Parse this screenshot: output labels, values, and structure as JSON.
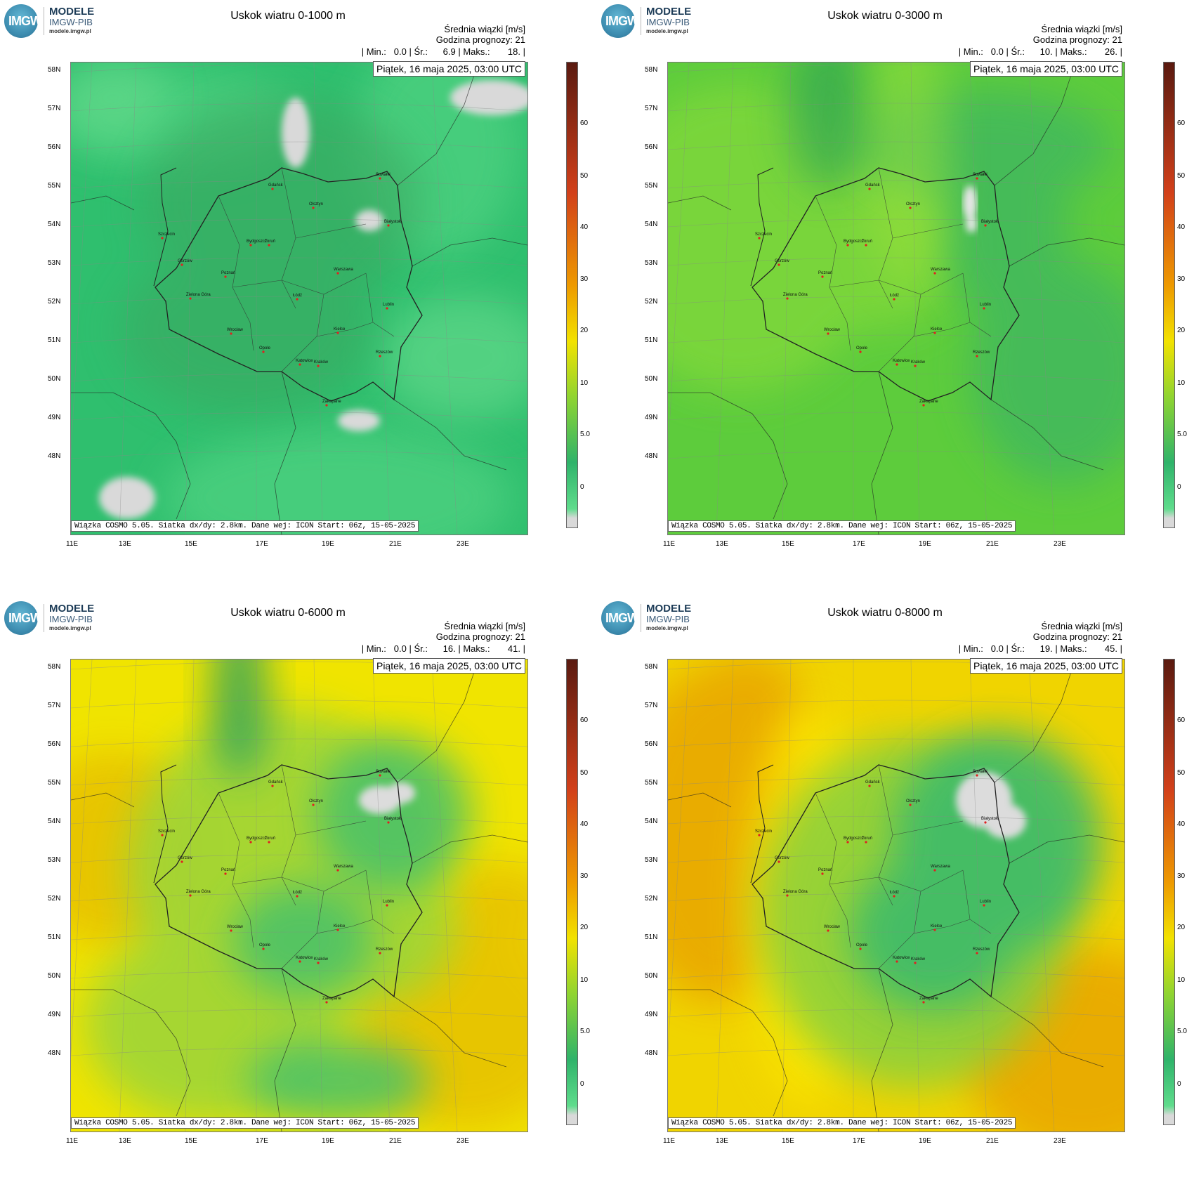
{
  "logo": {
    "line1": "MODELE",
    "line2": "IMGW-PIB",
    "line3": "modele.imgw.pl",
    "mark": "IMGW"
  },
  "info_label1": "Średnia wiązki [m/s]",
  "info_label2": "Godzina prognozy: 21",
  "date": "Piątek, 16 maja 2025, 03:00 UTC",
  "footer": "Wiązka COSMO 5.05. Siatka dx/dy: 2.8km. Dane wej: ICON Start: 06z, 15-05-2025",
  "lat_labels": [
    "58N",
    "57N",
    "56N",
    "55N",
    "54N",
    "53N",
    "52N",
    "51N",
    "50N",
    "49N",
    "48N"
  ],
  "lon_labels": [
    "11E",
    "13E",
    "15E",
    "17E",
    "19E",
    "21E",
    "23E"
  ],
  "colorbar_labels": [
    "60",
    "50",
    "40",
    "30",
    "20",
    "10",
    "5.0",
    "0"
  ],
  "colors": {
    "low_gray": "#d9d9d9",
    "green_light": "#5fdc8c",
    "green": "#2fb36a",
    "green_yellow": "#8fd431",
    "yellow": "#f2e200",
    "orange": "#ee9a00",
    "red": "#d2401a",
    "brown": "#5a1a10"
  },
  "cities": [
    "Gdańsk",
    "Suwałki",
    "Olsztyn",
    "Białystok",
    "Szczecin",
    "Bydgoszcz",
    "Toruń",
    "Gorzów",
    "Poznań",
    "Warszawa",
    "Zielona Góra",
    "Łódź",
    "Lublin",
    "Wrocław",
    "Kielce",
    "Opole",
    "Rzeszów",
    "Katowice",
    "Kraków",
    "Zakopane"
  ],
  "panels": [
    {
      "title": "Uskok wiatru 0-1000 m",
      "min": "0.0",
      "avg": "6.9",
      "max": "18.",
      "theme": "low"
    },
    {
      "title": "Uskok wiatru 0-3000 m",
      "min": "0.0",
      "avg": "10.",
      "max": "26.",
      "theme": "mid"
    },
    {
      "title": "Uskok wiatru 0-6000 m",
      "min": "0.0",
      "avg": "16.",
      "max": "41.",
      "theme": "high"
    },
    {
      "title": "Uskok wiatru 0-8000 m",
      "min": "0.0",
      "avg": "19.",
      "max": "45.",
      "theme": "vhigh"
    }
  ],
  "stats_labels": {
    "min": "Min.:",
    "avg": "Śr.:",
    "max": "Maks.:"
  }
}
